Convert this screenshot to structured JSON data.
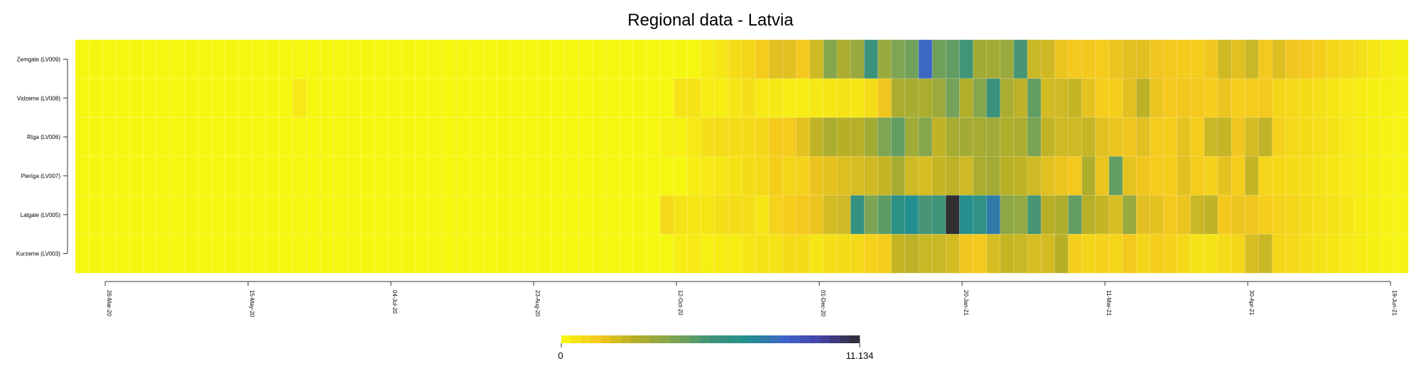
{
  "chart_data": {
    "type": "heatmap",
    "title": "Regional data - Latvia",
    "rows": [
      "Zemgale (LV009)",
      "Vidzeme (LV008)",
      "Rīga (LV006)",
      "Pierīga (LV007)",
      "Latgale (LV005)",
      "Kurzeme (LV003)"
    ],
    "num_columns": 98,
    "x_ticks": [
      {
        "label": "26-Mar-20",
        "col": 1.7
      },
      {
        "label": "15-May-20",
        "col": 12.2
      },
      {
        "label": "04-Jul-20",
        "col": 22.7
      },
      {
        "label": "23-Aug-20",
        "col": 33.2
      },
      {
        "label": "12-Oct-20",
        "col": 43.7
      },
      {
        "label": "01-Dec-20",
        "col": 54.2
      },
      {
        "label": "20-Jan-21",
        "col": 64.7
      },
      {
        "label": "11-Mar-21",
        "col": 75.2
      },
      {
        "label": "30-Apr-21",
        "col": 85.7
      },
      {
        "label": "19-Jun-21",
        "col": 96.2
      }
    ],
    "value_range": [
      0,
      11.134
    ],
    "legend_min_label": "0",
    "legend_max_label": "11.134",
    "legend_steps": 30,
    "colors": {
      "low": "#f6f711",
      "stops": [
        "#f6f711",
        "#f5c81e",
        "#b3ae28",
        "#7fa552",
        "#3f9379",
        "#238f8e",
        "#3f63c9",
        "#4640a3",
        "#2e2e2e"
      ]
    },
    "matrix": [
      [
        0,
        0,
        0,
        0,
        0,
        0,
        0,
        0,
        0,
        0,
        0,
        0,
        0,
        0,
        0,
        0,
        0,
        0,
        0,
        0,
        0,
        0,
        0,
        0,
        0,
        0,
        0,
        0,
        0,
        0,
        0,
        0,
        0,
        0,
        0,
        0,
        0,
        0,
        0,
        0,
        0,
        0,
        0,
        0,
        0,
        0,
        0.3,
        0.5,
        0.8,
        1.0,
        1.3,
        1.8,
        1.8,
        1.4,
        2.2,
        4.0,
        3.0,
        3.5,
        5.8,
        3.5,
        4.2,
        4.5,
        8.2,
        4.5,
        4.8,
        5.5,
        3.2,
        3.2,
        3.5,
        5.4,
        2.3,
        2.2,
        1.6,
        1.4,
        1.4,
        1.3,
        1.6,
        1.8,
        1.8,
        1.5,
        1.4,
        1.3,
        1.2,
        1.5,
        2.2,
        1.8,
        2.3,
        1.4,
        1.9,
        1.5,
        1.4,
        1.2,
        1.0,
        0.9,
        0.7,
        0.5,
        0.3,
        0.2
      ],
      [
        0,
        0,
        0,
        0,
        0,
        0,
        0,
        0,
        0,
        0,
        0,
        0,
        0,
        0,
        0,
        0,
        0.4,
        0,
        0,
        0,
        0,
        0,
        0,
        0,
        0,
        0,
        0,
        0,
        0,
        0,
        0,
        0,
        0,
        0,
        0,
        0,
        0,
        0,
        0,
        0,
        0,
        0,
        0,
        0,
        0.6,
        0.6,
        0.3,
        0.3,
        0.5,
        0.7,
        0.4,
        0.4,
        0.3,
        0.3,
        0.4,
        0.5,
        0.6,
        0.5,
        0.8,
        1.5,
        3.0,
        3.1,
        3.0,
        3.4,
        4.4,
        2.8,
        4.0,
        5.8,
        3.0,
        2.6,
        4.8,
        2.1,
        2.2,
        2.4,
        1.7,
        1.2,
        1.2,
        1.8,
        2.6,
        1.6,
        1.4,
        1.5,
        1.4,
        1.2,
        1.6,
        1.2,
        1.3,
        1.4,
        1.0,
        0.9,
        0.8,
        0.7,
        0.5,
        0.4,
        0.3,
        0.2,
        0.2,
        0.1
      ],
      [
        0,
        0,
        0,
        0,
        0,
        0,
        0,
        0,
        0,
        0,
        0,
        0,
        0,
        0,
        0,
        0,
        0,
        0,
        0,
        0,
        0,
        0,
        0,
        0,
        0,
        0,
        0,
        0,
        0,
        0,
        0,
        0,
        0,
        0,
        0,
        0,
        0,
        0,
        0,
        0,
        0,
        0,
        0,
        0.2,
        0.2,
        0.4,
        0.7,
        0.8,
        0.8,
        0.8,
        1.0,
        1.3,
        1.3,
        1.7,
        2.5,
        3.0,
        2.7,
        2.7,
        3.2,
        4.2,
        4.8,
        3.3,
        4.0,
        2.5,
        3.1,
        3.2,
        3.1,
        3.3,
        2.9,
        3.0,
        4.3,
        2.5,
        2.2,
        2.2,
        2.4,
        1.8,
        1.6,
        1.5,
        1.8,
        1.3,
        1.2,
        1.7,
        1.2,
        2.3,
        2.4,
        1.5,
        2.1,
        2.5,
        1.1,
        0.9,
        0.8,
        0.7,
        0.6,
        0.4,
        0.3,
        0.2,
        0.1,
        0.1
      ],
      [
        0,
        0,
        0,
        0,
        0,
        0,
        0,
        0,
        0,
        0,
        0,
        0,
        0,
        0,
        0,
        0,
        0,
        0,
        0,
        0,
        0,
        0,
        0,
        0,
        0,
        0,
        0,
        0,
        0,
        0,
        0,
        0,
        0,
        0,
        0,
        0,
        0,
        0,
        0,
        0,
        0,
        0,
        0,
        0,
        0,
        0.3,
        0.4,
        0.5,
        0.6,
        0.8,
        0.9,
        1.2,
        1.0,
        1.1,
        1.6,
        1.7,
        1.9,
        2.0,
        2.2,
        2.4,
        3.1,
        2.2,
        2.0,
        2.4,
        2.6,
        2.2,
        3.0,
        3.2,
        2.7,
        2.5,
        2.2,
        1.8,
        1.6,
        1.4,
        2.9,
        1.6,
        4.8,
        1.7,
        1.5,
        1.3,
        1.2,
        1.8,
        1.3,
        1.1,
        1.7,
        1.2,
        2.4,
        1.0,
        0.9,
        0.8,
        0.7,
        0.6,
        0.5,
        0.4,
        0.3,
        0.2,
        0.1,
        0.1
      ],
      [
        0,
        0,
        0,
        0,
        0,
        0,
        0,
        0,
        0,
        0,
        0,
        0,
        0,
        0,
        0,
        0,
        0,
        0,
        0,
        0,
        0,
        0,
        0,
        0,
        0,
        0,
        0,
        0,
        0,
        0,
        0,
        0,
        0,
        0,
        0,
        0,
        0,
        0,
        0,
        0,
        0,
        0,
        0,
        0.9,
        0.6,
        0.5,
        0.5,
        0.7,
        0.8,
        0.7,
        0.5,
        1.1,
        1.2,
        1.4,
        1.6,
        2.1,
        2.2,
        6.0,
        4.2,
        4.9,
        6.4,
        7.0,
        5.4,
        5.6,
        11.1,
        6.9,
        6.3,
        7.6,
        3.8,
        3.6,
        5.4,
        2.7,
        2.9,
        4.8,
        2.7,
        2.4,
        2.0,
        3.5,
        1.8,
        1.7,
        1.4,
        1.6,
        2.3,
        2.5,
        1.4,
        1.6,
        1.5,
        1.2,
        1.1,
        1.0,
        0.8,
        0.7,
        0.6,
        0.5,
        0.3,
        0.2,
        0.1,
        0.1
      ],
      [
        0,
        0,
        0,
        0,
        0,
        0,
        0,
        0,
        0,
        0,
        0,
        0,
        0,
        0,
        0,
        0,
        0,
        0,
        0,
        0,
        0,
        0,
        0,
        0,
        0,
        0,
        0,
        0,
        0,
        0,
        0,
        0,
        0,
        0,
        0,
        0,
        0,
        0,
        0,
        0,
        0,
        0,
        0,
        0,
        0.3,
        0.4,
        0.2,
        0.3,
        0.3,
        0.5,
        0.6,
        0.6,
        0.8,
        0.8,
        0.5,
        0.7,
        0.8,
        0.9,
        1.1,
        1.3,
        2.4,
        2.6,
        2.3,
        2.3,
        2.1,
        1.5,
        1.4,
        2.0,
        2.4,
        2.3,
        2.0,
        2.1,
        2.7,
        1.2,
        1.0,
        1.1,
        1.0,
        1.4,
        1.0,
        1.2,
        1.1,
        0.9,
        0.6,
        0.6,
        0.8,
        1.0,
        2.0,
        2.3,
        1.0,
        0.9,
        0.7,
        0.6,
        0.5,
        0.4,
        0.3,
        0.2,
        0.1,
        0.1
      ]
    ]
  }
}
